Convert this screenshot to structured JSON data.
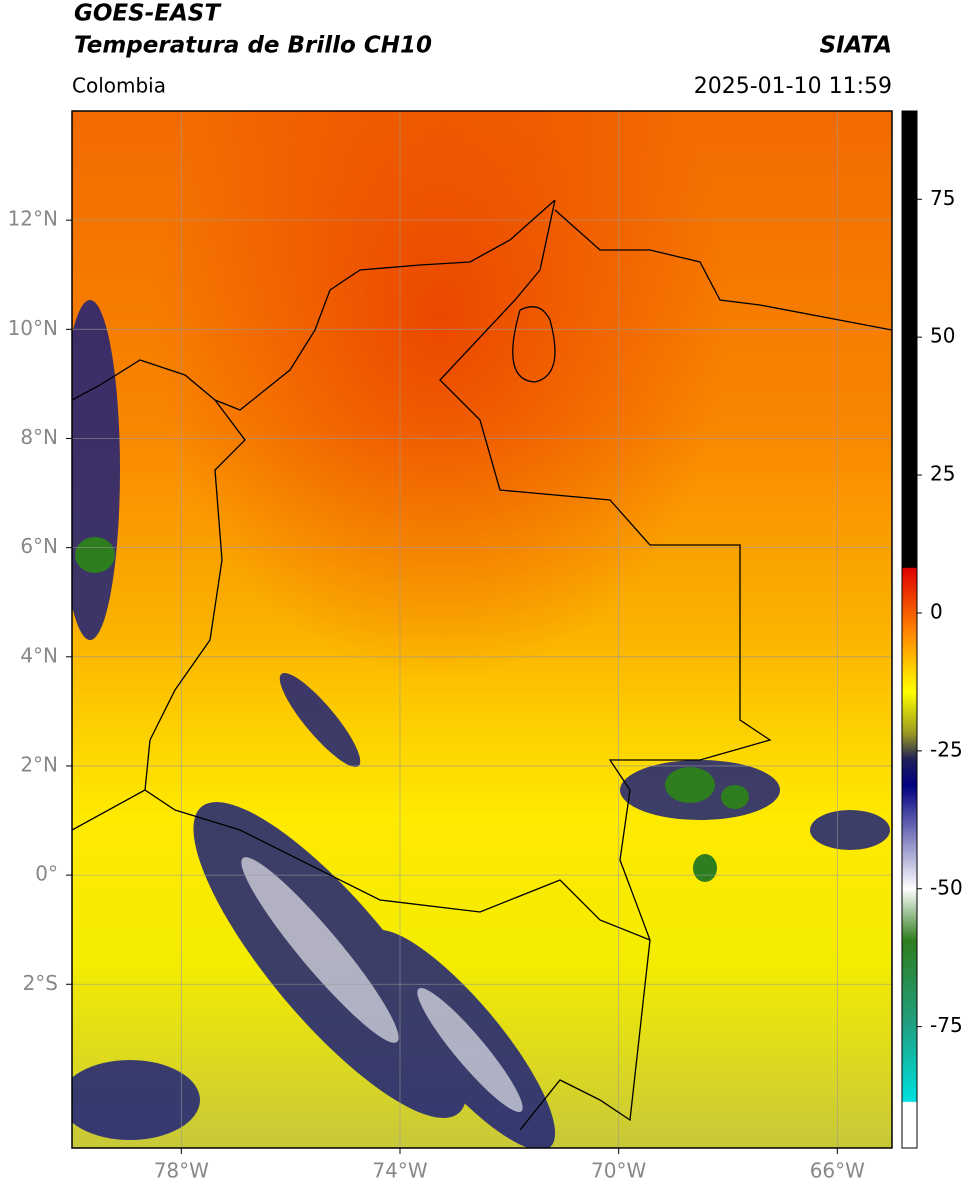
{
  "header": {
    "title": "GOES-EAST",
    "subtitle": "Temperatura de Brillo CH10",
    "brand": "SIATA",
    "region": "Colombia",
    "timestamp": "2025-01-10 11:59"
  },
  "map": {
    "lonlim": [
      -80,
      -65
    ],
    "latlim": [
      -5,
      14
    ],
    "grid": true,
    "xticks": [
      {
        "value": -78,
        "label": "78°W"
      },
      {
        "value": -74,
        "label": "74°W"
      },
      {
        "value": -70,
        "label": "70°W"
      },
      {
        "value": -66,
        "label": "66°W"
      }
    ],
    "yticks": [
      {
        "value": 12,
        "label": "12°N"
      },
      {
        "value": 10,
        "label": "10°N"
      },
      {
        "value": 8,
        "label": "8°N"
      },
      {
        "value": 6,
        "label": "6°N"
      },
      {
        "value": 4,
        "label": "4°N"
      },
      {
        "value": 2,
        "label": "2°N"
      },
      {
        "value": 0,
        "label": "0°"
      },
      {
        "value": -2,
        "label": "2°S"
      }
    ]
  },
  "colorbar": {
    "lim": [
      -97,
      91
    ],
    "ticks": [
      75,
      50,
      25,
      0,
      -25,
      -50,
      -75
    ]
  }
}
